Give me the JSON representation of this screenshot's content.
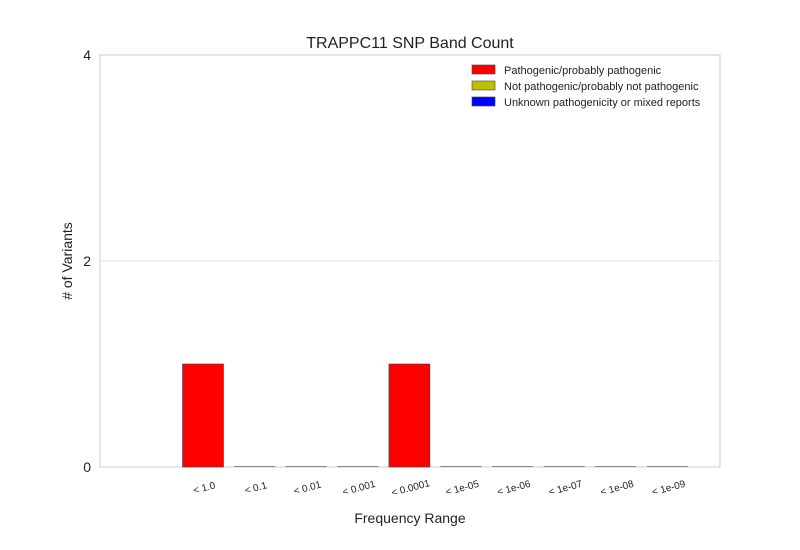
{
  "chart_data": {
    "type": "bar",
    "title": "TRAPPC11 SNP Band Count",
    "xlabel": "Frequency Range",
    "ylabel": "# of Variants",
    "ylim": [
      0,
      4
    ],
    "yticks": [
      "0",
      "2",
      "4"
    ],
    "grid": true,
    "legend_position": "top-right",
    "categories": [
      "< 1.0",
      "< 0.1",
      "< 0.01",
      "< 0.001",
      "< 0.0001",
      "< 1e-05",
      "< 1e-06",
      "< 1e-07",
      "< 1e-08",
      "< 1e-09"
    ],
    "series": [
      {
        "name": "Pathogenic/probably pathogenic",
        "color": "#ff0000",
        "values": [
          1,
          0,
          0,
          0,
          1,
          0,
          0,
          0,
          0,
          0
        ]
      },
      {
        "name": "Not pathogenic/probably not pathogenic",
        "color": "#bfbf00",
        "values": [
          0,
          0,
          0,
          0,
          0,
          0,
          0,
          0,
          0,
          0
        ]
      },
      {
        "name": "Unknown pathogenicity or mixed reports",
        "color": "#0000ff",
        "values": [
          0,
          0,
          0,
          0,
          0,
          0,
          0,
          0,
          0,
          0
        ]
      }
    ]
  }
}
